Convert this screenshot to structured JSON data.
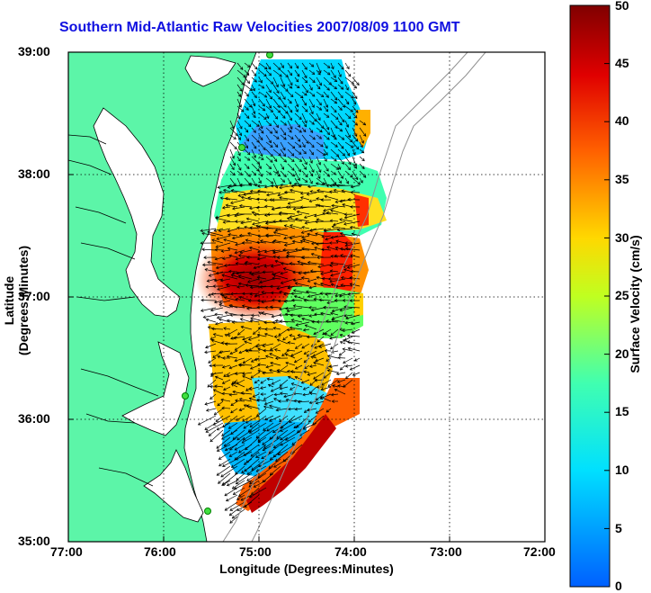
{
  "title": "Southern Mid-Atlantic Raw Velocities 2007/08/09 1100 GMT",
  "x_axis_label": "Longitude (Degrees:Minutes)",
  "y_axis_label": "Latitude (Degrees:Minutes)",
  "colorbar_label": "Surface Velocity (cm/s)",
  "x_ticks": [
    "77:00",
    "76:00",
    "75:00",
    "74:00",
    "73:00",
    "72:00"
  ],
  "y_ticks": [
    "39:00",
    "38:00",
    "37:00",
    "36:00",
    "35:00"
  ],
  "colorbar_ticks": [
    "0",
    "5",
    "10",
    "15",
    "20",
    "25",
    "30",
    "35",
    "40",
    "45",
    "50"
  ],
  "colors": {
    "land": "#5cf5a8",
    "title": "#1010e0",
    "low": "#0060ff",
    "high": "#800000"
  },
  "chart_data": {
    "type": "heatmap",
    "title": "Southern Mid-Atlantic Raw Velocities 2007/08/09 1100 GMT",
    "xlabel": "Longitude (Degrees:Minutes)",
    "ylabel": "Latitude (Degrees:Minutes)",
    "xlim": [
      "77:00",
      "72:00"
    ],
    "ylim": [
      "35:00",
      "39:00"
    ],
    "colorbar": {
      "label": "Surface Velocity (cm/s)",
      "range": [
        0,
        50
      ]
    },
    "grid": true
  }
}
